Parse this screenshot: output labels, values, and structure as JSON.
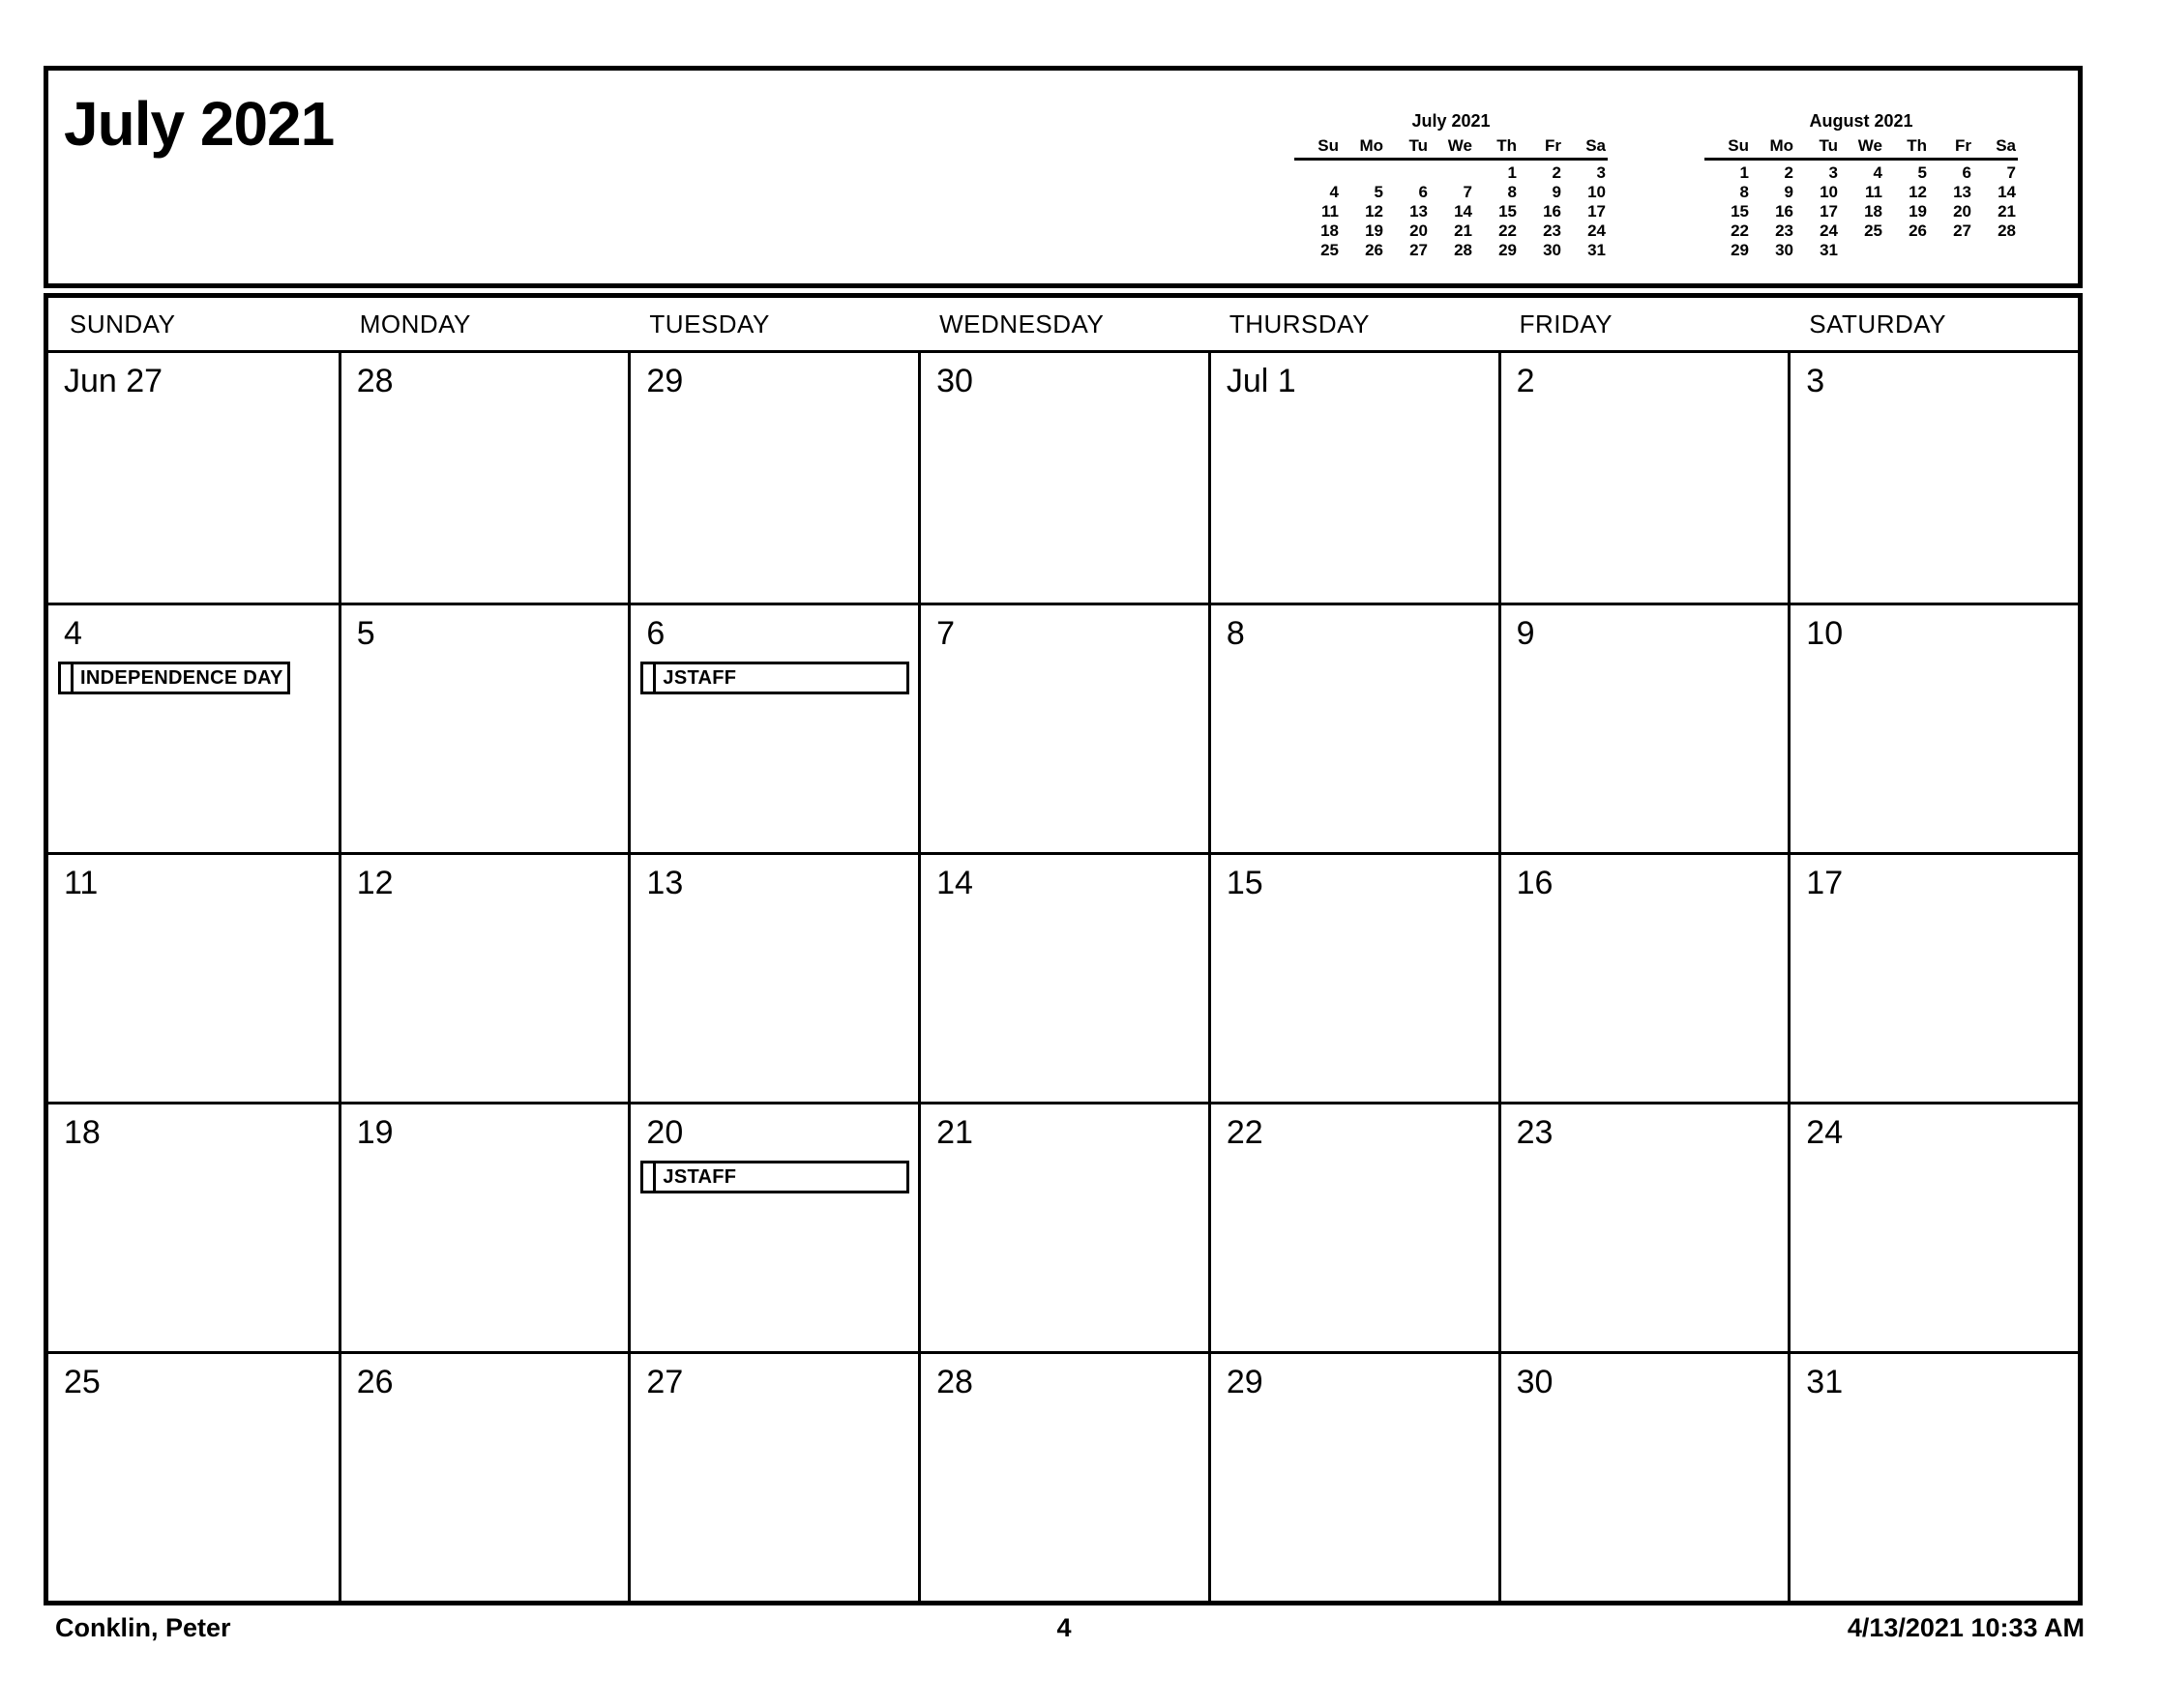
{
  "page": {
    "title": "July 2021",
    "footer": {
      "user_name": "Conklin, Peter",
      "page_number": "4",
      "printed_datetime": "4/13/2021 10:33 AM"
    }
  },
  "mini_calendars": [
    {
      "title": "July 2021",
      "day_headers": [
        "Su",
        "Mo",
        "Tu",
        "We",
        "Th",
        "Fr",
        "Sa"
      ],
      "weeks": [
        [
          "",
          "",
          "",
          "",
          "1",
          "2",
          "3"
        ],
        [
          "4",
          "5",
          "6",
          "7",
          "8",
          "9",
          "10"
        ],
        [
          "11",
          "12",
          "13",
          "14",
          "15",
          "16",
          "17"
        ],
        [
          "18",
          "19",
          "20",
          "21",
          "22",
          "23",
          "24"
        ],
        [
          "25",
          "26",
          "27",
          "28",
          "29",
          "30",
          "31"
        ]
      ]
    },
    {
      "title": "August 2021",
      "day_headers": [
        "Su",
        "Mo",
        "Tu",
        "We",
        "Th",
        "Fr",
        "Sa"
      ],
      "weeks": [
        [
          "1",
          "2",
          "3",
          "4",
          "5",
          "6",
          "7"
        ],
        [
          "8",
          "9",
          "10",
          "11",
          "12",
          "13",
          "14"
        ],
        [
          "15",
          "16",
          "17",
          "18",
          "19",
          "20",
          "21"
        ],
        [
          "22",
          "23",
          "24",
          "25",
          "26",
          "27",
          "28"
        ],
        [
          "29",
          "30",
          "31",
          "",
          "",
          "",
          ""
        ]
      ]
    }
  ],
  "main_calendar": {
    "day_headers": [
      "SUNDAY",
      "MONDAY",
      "TUESDAY",
      "WEDNESDAY",
      "THURSDAY",
      "FRIDAY",
      "SATURDAY"
    ],
    "cells": [
      {
        "label": "Jun 27"
      },
      {
        "label": "28"
      },
      {
        "label": "29"
      },
      {
        "label": "30"
      },
      {
        "label": "Jul 1"
      },
      {
        "label": "2"
      },
      {
        "label": "3"
      },
      {
        "label": "4",
        "event": "INDEPENDENCE DAY"
      },
      {
        "label": "5"
      },
      {
        "label": "6",
        "event": "JSTAFF"
      },
      {
        "label": "7"
      },
      {
        "label": "8"
      },
      {
        "label": "9"
      },
      {
        "label": "10"
      },
      {
        "label": "11"
      },
      {
        "label": "12"
      },
      {
        "label": "13"
      },
      {
        "label": "14"
      },
      {
        "label": "15"
      },
      {
        "label": "16"
      },
      {
        "label": "17"
      },
      {
        "label": "18"
      },
      {
        "label": "19"
      },
      {
        "label": "20",
        "event": "JSTAFF"
      },
      {
        "label": "21"
      },
      {
        "label": "22"
      },
      {
        "label": "23"
      },
      {
        "label": "24"
      },
      {
        "label": "25"
      },
      {
        "label": "26"
      },
      {
        "label": "27"
      },
      {
        "label": "28"
      },
      {
        "label": "29"
      },
      {
        "label": "30"
      },
      {
        "label": "31"
      }
    ]
  }
}
